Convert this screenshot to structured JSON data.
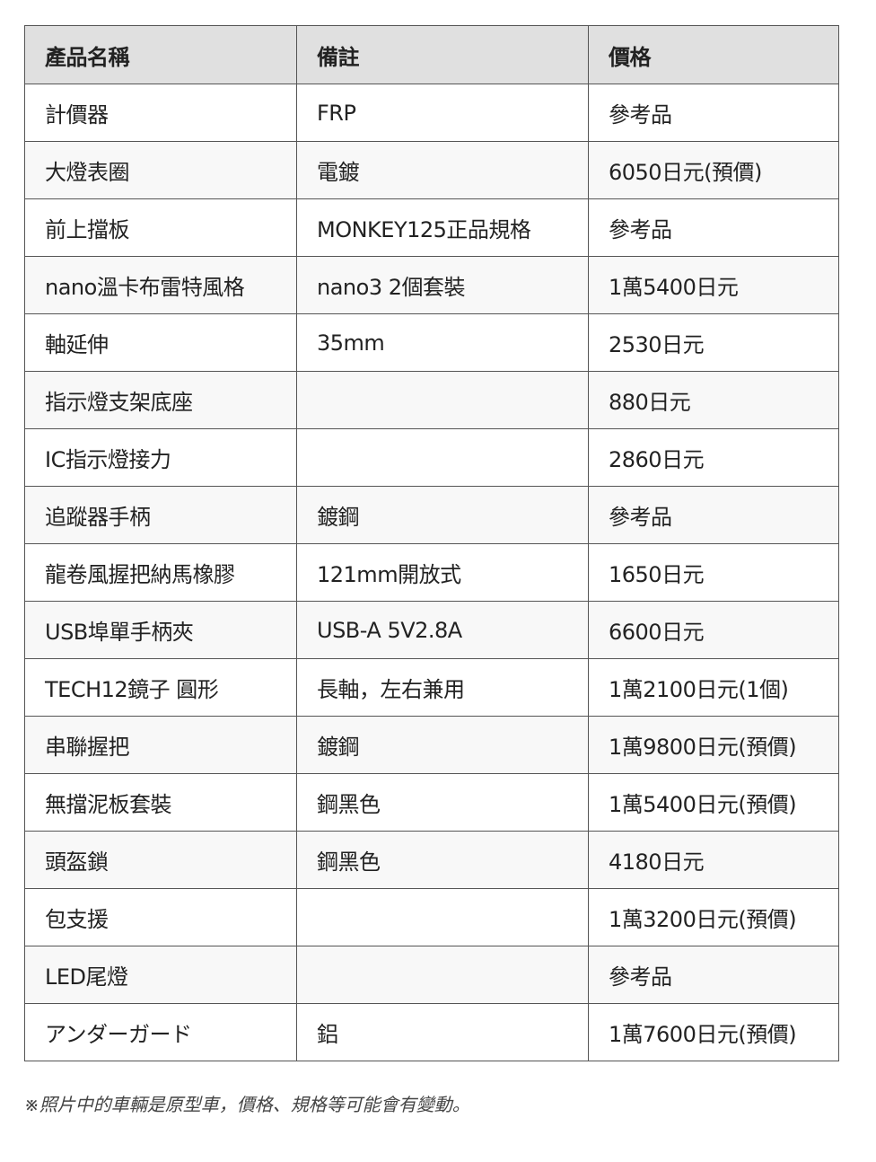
{
  "headers": [
    "產品名稱",
    "備註",
    "價格"
  ],
  "rows": [
    [
      "計價器",
      "FRP",
      "參考品"
    ],
    [
      "大燈表圈",
      "電鍍",
      "6050日元(預價)"
    ],
    [
      "前上擋板",
      "MONKEY125正品規格",
      "參考品"
    ],
    [
      "nano溫卡布雷特風格",
      "nano3 2個套裝",
      "1萬5400日元"
    ],
    [
      "軸延伸",
      "35mm",
      "2530日元"
    ],
    [
      "指示燈支架底座",
      "",
      "880日元"
    ],
    [
      "IC指示燈接力",
      "",
      "2860日元"
    ],
    [
      "追蹤器手柄",
      "鍍鋼",
      "參考品"
    ],
    [
      "龍卷風握把納馬橡膠",
      "121mm開放式",
      "1650日元"
    ],
    [
      "USB埠單手柄夾",
      "USB-A 5V2.8A",
      "6600日元"
    ],
    [
      "TECH12鏡子 圓形",
      "長軸，左右兼用",
      "1萬2100日元(1個)"
    ],
    [
      "串聯握把",
      "鍍鋼",
      "1萬9800日元(預價)"
    ],
    [
      "無擋泥板套裝",
      "鋼黑色",
      "1萬5400日元(預價)"
    ],
    [
      "頭盔鎖",
      "鋼黑色",
      "4180日元"
    ],
    [
      "包支援",
      "",
      "1萬3200日元(預價)"
    ],
    [
      "LED尾燈",
      "",
      "參考品"
    ],
    [
      "アンダーガード",
      "鋁",
      "1萬7600日元(預價)"
    ]
  ],
  "note": "※照片中的車輛是原型車，價格、規格等可能會有變動。"
}
